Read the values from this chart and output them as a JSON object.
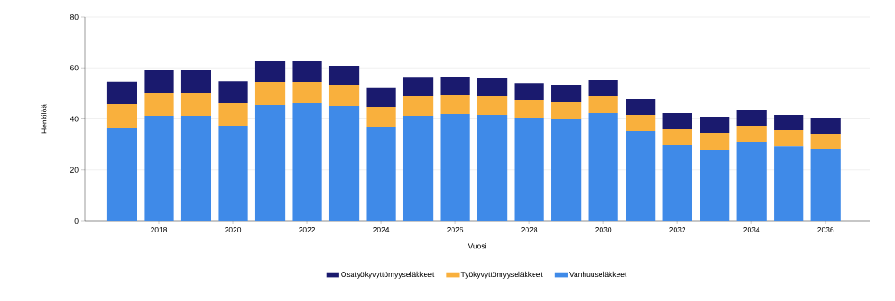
{
  "chart_data": {
    "type": "bar",
    "stacked": true,
    "xlabel": "Vuosi",
    "ylabel": "Henkilöä",
    "x": [
      2017,
      2018,
      2019,
      2020,
      2021,
      2022,
      2023,
      2024,
      2025,
      2026,
      2027,
      2028,
      2029,
      2030,
      2031,
      2032,
      2033,
      2034,
      2035,
      2036
    ],
    "series": [
      {
        "name": "Vanhuuseläkkeet",
        "color": "#3f8ae8",
        "values": [
          36.3,
          41.2,
          41.2,
          37.0,
          45.4,
          46.1,
          45.1,
          36.7,
          41.2,
          41.9,
          41.6,
          40.5,
          39.8,
          42.3,
          35.3,
          29.7,
          27.9,
          31.1,
          29.3,
          28.3
        ]
      },
      {
        "name": "Työkyvyttömyyseläkkeet",
        "color": "#f9b03d",
        "values": [
          9.5,
          9.1,
          9.1,
          9.1,
          9.1,
          8.4,
          8.0,
          8.0,
          7.7,
          7.4,
          7.3,
          7.0,
          7.0,
          6.6,
          6.3,
          6.3,
          6.7,
          6.3,
          6.3,
          5.9
        ]
      },
      {
        "name": "Osatyökyvyttömyyseläkkeet",
        "color": "#1a1a6e",
        "values": [
          8.8,
          8.7,
          8.7,
          8.7,
          8.0,
          8.0,
          7.7,
          7.4,
          7.3,
          7.3,
          7.0,
          6.6,
          6.6,
          6.3,
          6.3,
          6.3,
          6.3,
          5.9,
          6.0,
          6.3
        ]
      }
    ],
    "xlim": [
      2016,
      2037.2
    ],
    "xticks": [
      2018,
      2020,
      2022,
      2024,
      2026,
      2028,
      2030,
      2032,
      2034,
      2036
    ],
    "ylim": [
      0,
      80
    ],
    "yticks": [
      0,
      20,
      40,
      60,
      80
    ],
    "grid": "y",
    "legend": "bottom"
  }
}
